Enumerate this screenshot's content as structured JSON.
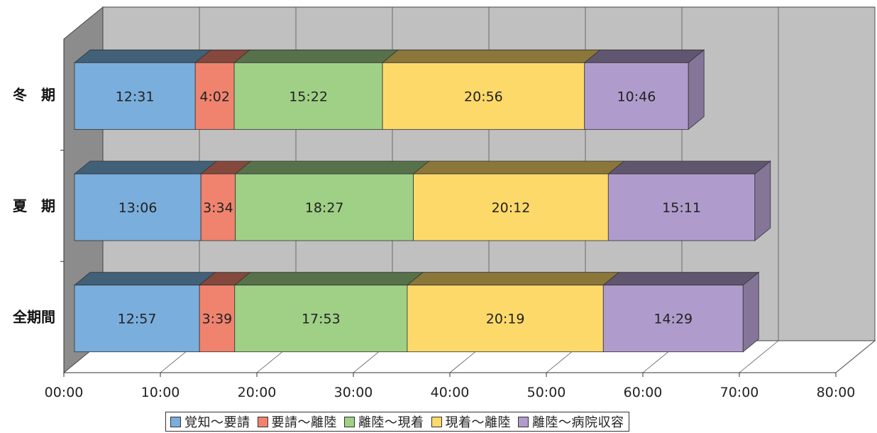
{
  "chart_data": {
    "type": "bar",
    "orientation": "horizontal",
    "stacked": true,
    "style": "3d",
    "categories": [
      "冬　期",
      "夏　期",
      "全期間"
    ],
    "series": [
      {
        "name": "覚知〜要請",
        "color": "#7aaedc",
        "values": [
          "12:31",
          "13:06",
          "12:57"
        ]
      },
      {
        "name": "要請〜離陸",
        "color": "#f0836e",
        "values": [
          "4:02",
          "3:34",
          "3:39"
        ]
      },
      {
        "name": "離陸〜現着",
        "color": "#9fd086",
        "values": [
          "15:22",
          "18:27",
          "17:53"
        ]
      },
      {
        "name": "現着〜離陸",
        "color": "#fdd96a",
        "values": [
          "20:56",
          "20:12",
          "20:19"
        ]
      },
      {
        "name": "離陸〜病院収容",
        "color": "#b09ccc",
        "values": [
          "10:46",
          "15:11",
          "14:29"
        ]
      }
    ],
    "x_ticks": [
      "00:00",
      "10:00",
      "20:00",
      "30:00",
      "40:00",
      "50:00",
      "60:00",
      "70:00",
      "80:00"
    ],
    "xlim": [
      "00:00",
      "80:00"
    ],
    "grid": true,
    "legend_position": "bottom"
  }
}
